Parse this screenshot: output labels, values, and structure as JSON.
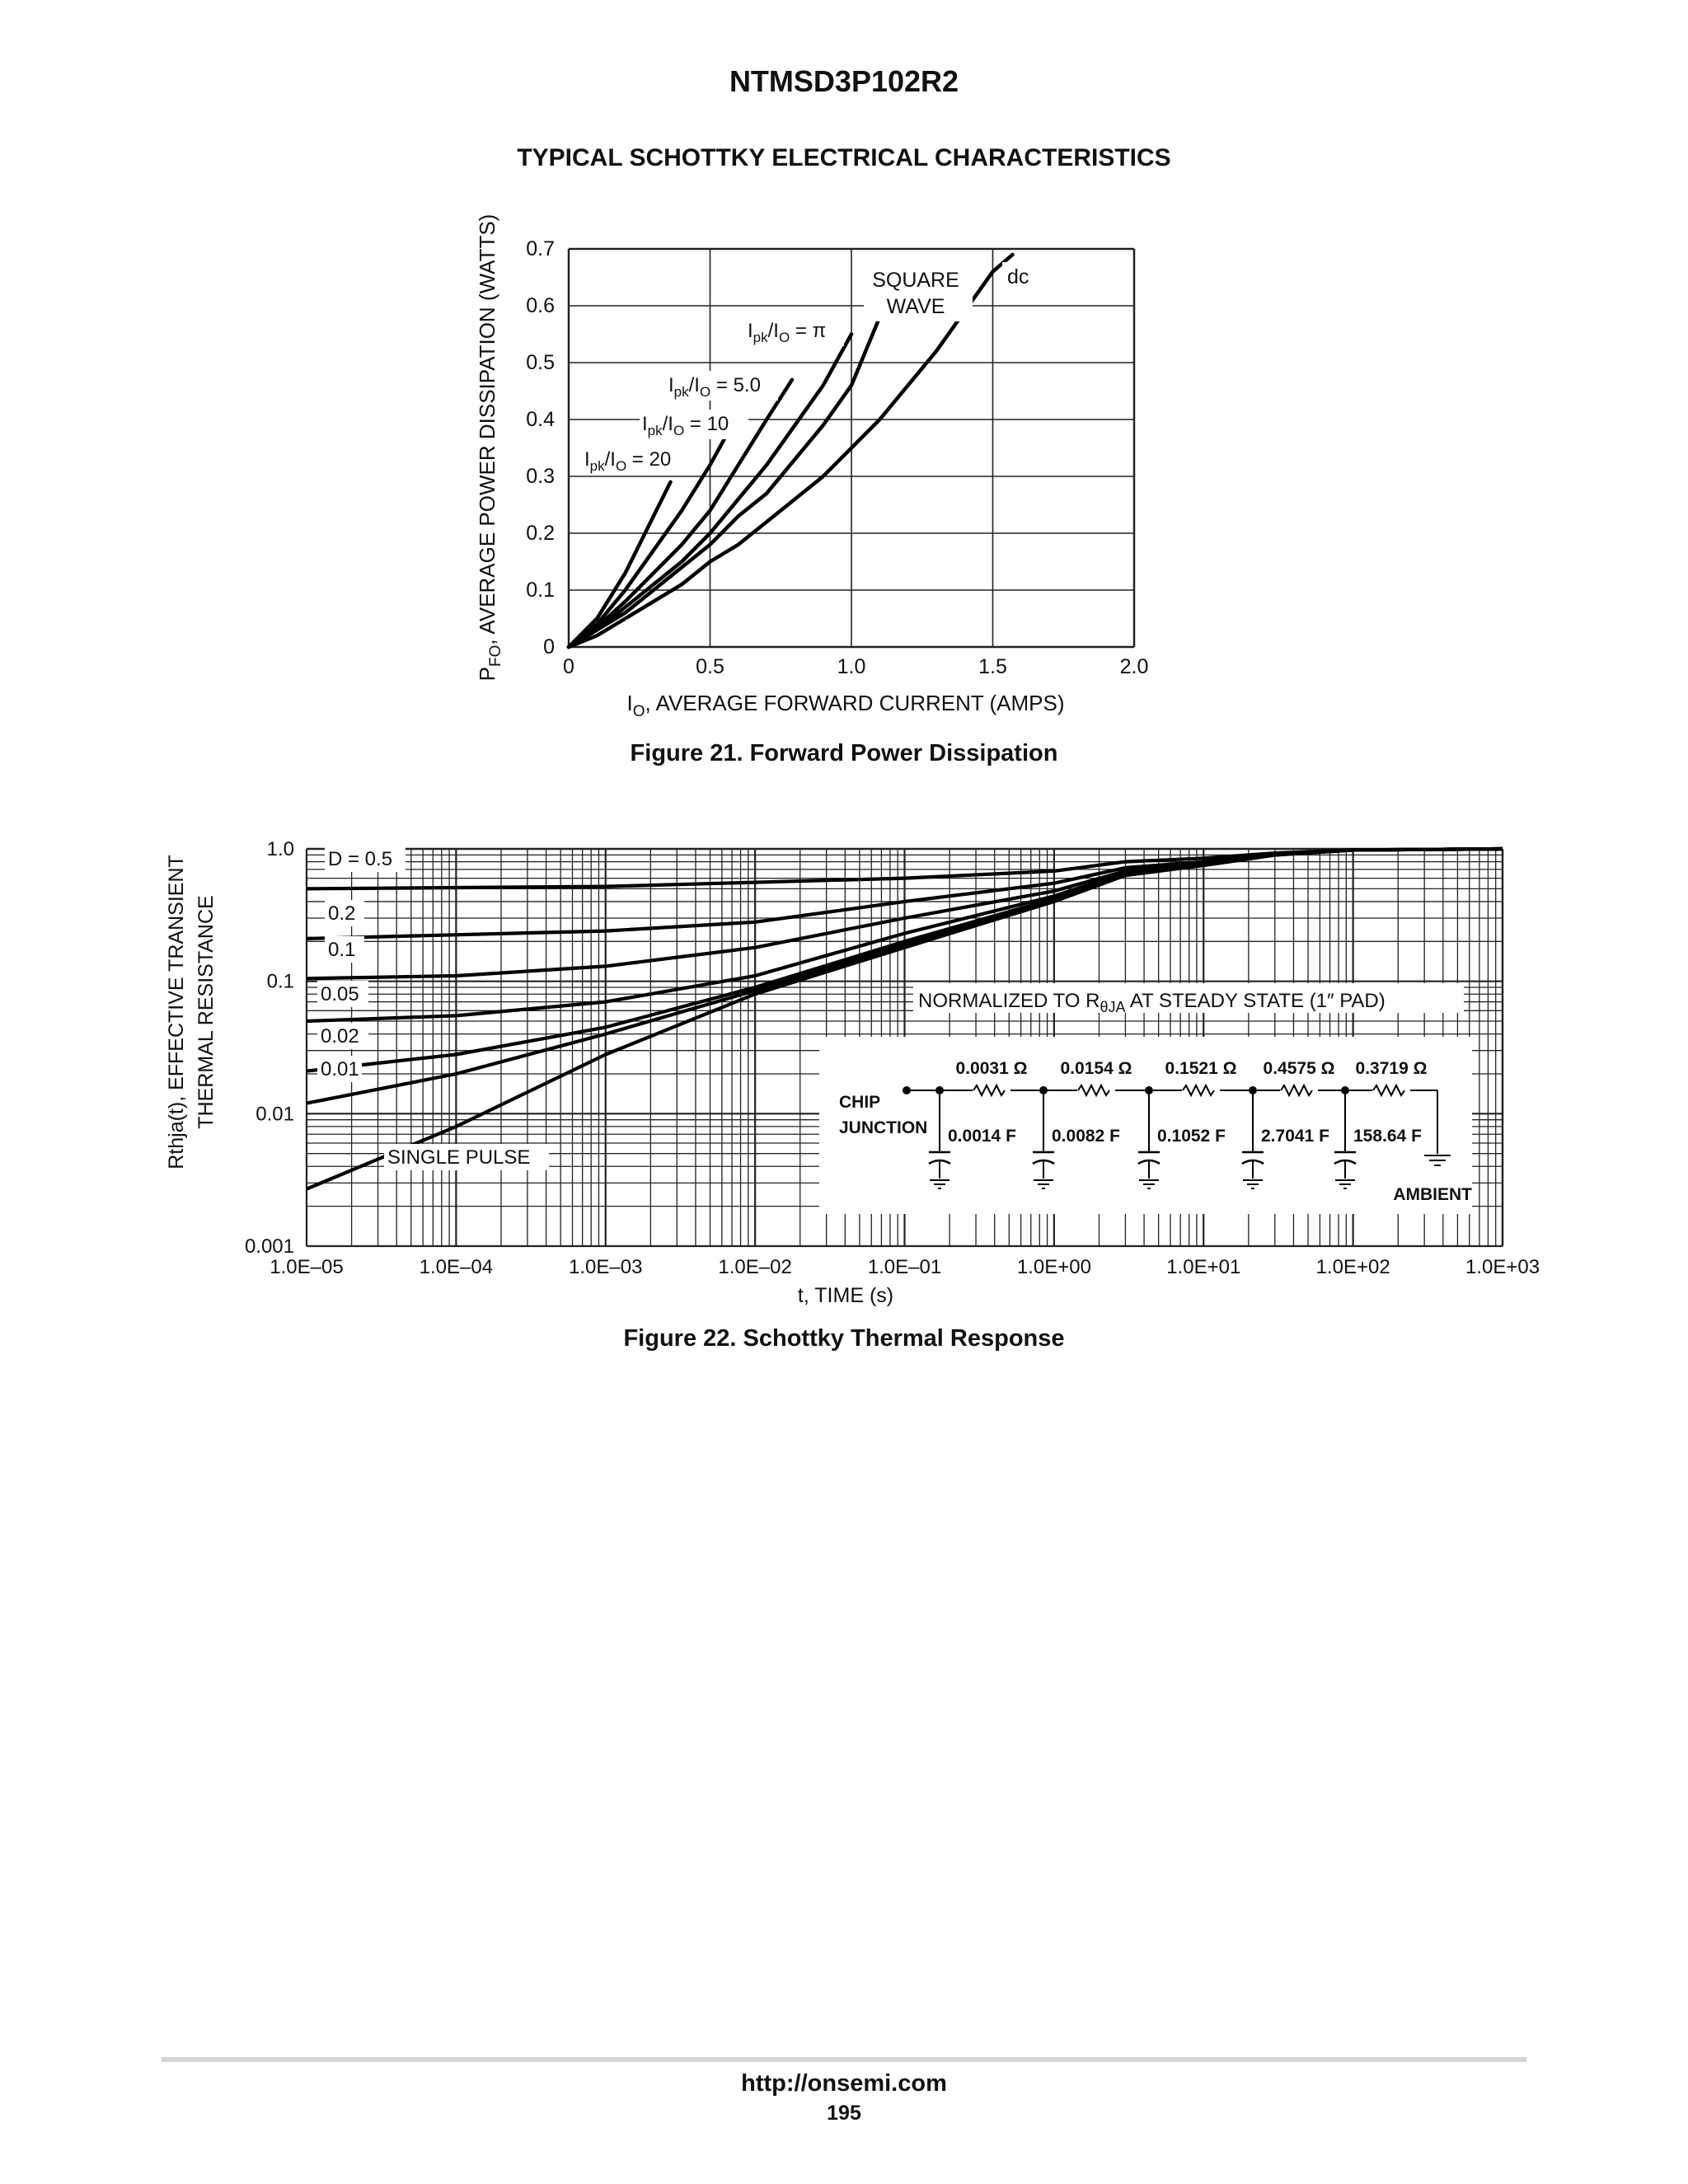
{
  "document": {
    "title": "NTMSD3P102R2",
    "section_title": "TYPICAL SCHOTTKY ELECTRICAL CHARACTERISTICS"
  },
  "chart_data": [
    {
      "type": "line",
      "title": "",
      "caption": "Figure 21. Forward Power Dissipation",
      "xlabel": "IO, AVERAGE FORWARD CURRENT (AMPS)",
      "ylabel": "PFO, AVERAGE POWER DISSIPATION (WATTS)",
      "xlim": [
        0,
        2.0
      ],
      "ylim": [
        0,
        0.7
      ],
      "x_ticks": [
        "0",
        "0.5",
        "1.0",
        "1.5",
        "2.0"
      ],
      "y_ticks": [
        "0",
        "0.1",
        "0.2",
        "0.3",
        "0.4",
        "0.5",
        "0.6",
        "0.7"
      ],
      "grid": true,
      "series": [
        {
          "name": "Ipk/Io = 20",
          "points": [
            [
              0,
              0
            ],
            [
              0.1,
              0.05
            ],
            [
              0.2,
              0.13
            ],
            [
              0.3,
              0.23
            ],
            [
              0.36,
              0.29
            ]
          ]
        },
        {
          "name": "Ipk/Io = 10",
          "points": [
            [
              0,
              0
            ],
            [
              0.1,
              0.04
            ],
            [
              0.2,
              0.1
            ],
            [
              0.3,
              0.17
            ],
            [
              0.4,
              0.24
            ],
            [
              0.5,
              0.32
            ],
            [
              0.55,
              0.365
            ]
          ]
        },
        {
          "name": "Ipk/Io = 5.0",
          "points": [
            [
              0,
              0
            ],
            [
              0.1,
              0.035
            ],
            [
              0.2,
              0.08
            ],
            [
              0.3,
              0.13
            ],
            [
              0.4,
              0.18
            ],
            [
              0.5,
              0.24
            ],
            [
              0.6,
              0.32
            ],
            [
              0.7,
              0.4
            ],
            [
              0.79,
              0.47
            ]
          ]
        },
        {
          "name": "Ipk/Io = π",
          "points": [
            [
              0,
              0
            ],
            [
              0.1,
              0.03
            ],
            [
              0.2,
              0.07
            ],
            [
              0.3,
              0.11
            ],
            [
              0.4,
              0.15
            ],
            [
              0.5,
              0.2
            ],
            [
              0.6,
              0.26
            ],
            [
              0.7,
              0.32
            ],
            [
              0.8,
              0.39
            ],
            [
              0.9,
              0.46
            ],
            [
              1.0,
              0.55
            ]
          ]
        },
        {
          "name": "SQUARE WAVE",
          "points": [
            [
              0,
              0
            ],
            [
              0.1,
              0.03
            ],
            [
              0.2,
              0.06
            ],
            [
              0.3,
              0.1
            ],
            [
              0.4,
              0.14
            ],
            [
              0.5,
              0.18
            ],
            [
              0.6,
              0.23
            ],
            [
              0.7,
              0.27
            ],
            [
              0.8,
              0.33
            ],
            [
              0.9,
              0.39
            ],
            [
              1.0,
              0.46
            ],
            [
              1.1,
              0.58
            ]
          ]
        },
        {
          "name": "dc",
          "points": [
            [
              0,
              0
            ],
            [
              0.1,
              0.02
            ],
            [
              0.2,
              0.05
            ],
            [
              0.3,
              0.08
            ],
            [
              0.4,
              0.11
            ],
            [
              0.5,
              0.15
            ],
            [
              0.6,
              0.18
            ],
            [
              0.7,
              0.22
            ],
            [
              0.8,
              0.26
            ],
            [
              0.9,
              0.3
            ],
            [
              1.0,
              0.35
            ],
            [
              1.1,
              0.4
            ],
            [
              1.2,
              0.46
            ],
            [
              1.3,
              0.52
            ],
            [
              1.4,
              0.59
            ],
            [
              1.5,
              0.66
            ],
            [
              1.57,
              0.69
            ]
          ]
        }
      ],
      "labels": [
        "Ipk/Io = 20",
        "Ipk/Io = 10",
        "Ipk/Io = 5.0",
        "Ipk/Io = π",
        "SQUARE",
        "WAVE",
        "dc"
      ]
    },
    {
      "type": "line",
      "title": "",
      "caption": "Figure 22. Schottky Thermal Response",
      "xlabel": "t, TIME (s)",
      "ylabel_line1": "Rthja(t), EFFECTIVE TRANSIENT",
      "ylabel_line2": "THERMAL RESISTANCE",
      "x_scale": "log",
      "y_scale": "log",
      "xlim": [
        1e-05,
        1000
      ],
      "ylim": [
        0.001,
        1.0
      ],
      "x_ticks": [
        "1.0E–05",
        "1.0E–04",
        "1.0E–03",
        "1.0E–02",
        "1.0E–01",
        "1.0E+00",
        "1.0E+01",
        "1.0E+02",
        "1.0E+03"
      ],
      "y_ticks": [
        "0.001",
        "0.01",
        "0.1",
        "1.0"
      ],
      "grid": true,
      "series": [
        {
          "name": "D = 0.5",
          "points": [
            [
              1e-05,
              0.5
            ],
            [
              0.001,
              0.52
            ],
            [
              0.1,
              0.6
            ],
            [
              1,
              0.68
            ],
            [
              3,
              0.8
            ],
            [
              10,
              0.85
            ],
            [
              30,
              0.93
            ],
            [
              100,
              0.98
            ],
            [
              1000,
              1.0
            ]
          ]
        },
        {
          "name": "0.2",
          "points": [
            [
              1e-05,
              0.21
            ],
            [
              0.001,
              0.24
            ],
            [
              0.01,
              0.28
            ],
            [
              0.1,
              0.4
            ],
            [
              1,
              0.55
            ],
            [
              3,
              0.72
            ],
            [
              10,
              0.8
            ],
            [
              30,
              0.92
            ],
            [
              100,
              0.98
            ],
            [
              1000,
              1.0
            ]
          ]
        },
        {
          "name": "0.1",
          "points": [
            [
              1e-05,
              0.105
            ],
            [
              0.0001,
              0.11
            ],
            [
              0.001,
              0.13
            ],
            [
              0.01,
              0.18
            ],
            [
              0.1,
              0.3
            ],
            [
              1,
              0.48
            ],
            [
              3,
              0.68
            ],
            [
              10,
              0.78
            ],
            [
              30,
              0.92
            ],
            [
              100,
              0.98
            ],
            [
              1000,
              1.0
            ]
          ]
        },
        {
          "name": "0.05",
          "points": [
            [
              1e-05,
              0.05
            ],
            [
              0.0001,
              0.055
            ],
            [
              0.001,
              0.07
            ],
            [
              0.01,
              0.11
            ],
            [
              0.1,
              0.23
            ],
            [
              1,
              0.44
            ],
            [
              3,
              0.66
            ],
            [
              10,
              0.77
            ],
            [
              30,
              0.91
            ],
            [
              100,
              0.98
            ],
            [
              1000,
              1.0
            ]
          ]
        },
        {
          "name": "0.02",
          "points": [
            [
              1e-05,
              0.021
            ],
            [
              0.0001,
              0.028
            ],
            [
              0.001,
              0.045
            ],
            [
              0.01,
              0.09
            ],
            [
              0.1,
              0.2
            ],
            [
              1,
              0.42
            ],
            [
              3,
              0.65
            ],
            [
              10,
              0.76
            ],
            [
              30,
              0.9
            ],
            [
              100,
              0.98
            ],
            [
              1000,
              1.0
            ]
          ]
        },
        {
          "name": "0.01",
          "points": [
            [
              1e-05,
              0.012
            ],
            [
              0.0001,
              0.02
            ],
            [
              0.001,
              0.04
            ],
            [
              0.01,
              0.085
            ],
            [
              0.1,
              0.19
            ],
            [
              1,
              0.41
            ],
            [
              3,
              0.64
            ],
            [
              10,
              0.75
            ],
            [
              30,
              0.9
            ],
            [
              100,
              0.98
            ],
            [
              1000,
              1.0
            ]
          ]
        },
        {
          "name": "SINGLE PULSE",
          "points": [
            [
              1e-05,
              0.0027
            ],
            [
              0.0001,
              0.008
            ],
            [
              0.001,
              0.028
            ],
            [
              0.01,
              0.08
            ],
            [
              0.1,
              0.18
            ],
            [
              1,
              0.4
            ],
            [
              3,
              0.63
            ],
            [
              10,
              0.75
            ],
            [
              30,
              0.9
            ],
            [
              100,
              0.98
            ],
            [
              1000,
              1.0
            ]
          ]
        }
      ],
      "labels": [
        "D = 0.5",
        "0.2",
        "0.1",
        "0.05",
        "0.02",
        "0.01",
        "SINGLE PULSE"
      ],
      "annotation": {
        "prefix": "NORMALIZED TO R",
        "subscript": "θJA",
        "suffix": " AT STEADY STATE (1″ PAD)"
      },
      "circuit": {
        "chip_label_1": "CHIP",
        "chip_label_2": "JUNCTION",
        "ambient_label": "AMBIENT",
        "resistors": [
          "0.0031 Ω",
          "0.0154 Ω",
          "0.1521 Ω",
          "0.4575 Ω",
          "0.3719 Ω"
        ],
        "capacitors": [
          "0.0014 F",
          "0.0082 F",
          "0.1052 F",
          "2.7041 F",
          "158.64 F"
        ]
      }
    }
  ],
  "footer": {
    "url": "http://onsemi.com",
    "page_number": "195"
  }
}
